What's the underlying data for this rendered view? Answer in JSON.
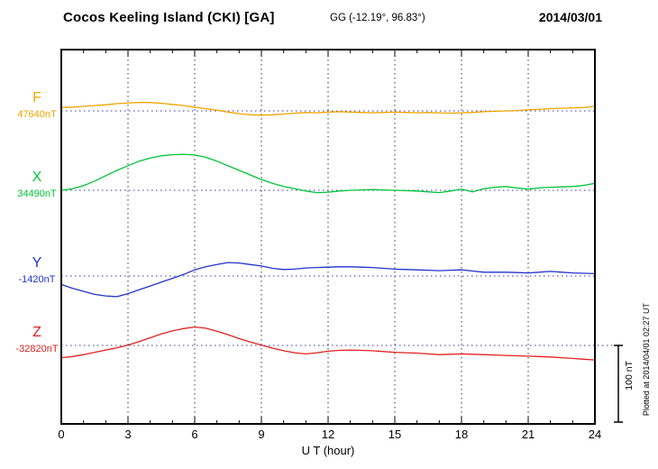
{
  "header": {
    "title": "Cocos Keeling Island (CKI)  [GA]",
    "coords": "GG (-12.19°,  96.83°)",
    "date": "2014/03/01"
  },
  "side_note": "Plotted at 2014/04/01 02:27 UT",
  "scale_bar": {
    "label": "100 nT"
  },
  "x_axis": {
    "label": "U T (hour)",
    "min": 0,
    "max": 24,
    "ticks": [
      0,
      3,
      6,
      9,
      12,
      15,
      18,
      21,
      24
    ]
  },
  "chart_data": {
    "type": "line",
    "title": "Cocos Keeling Island (CKI) magnetogram 2014/03/01",
    "units": "nT",
    "x_step": 0.5,
    "scale_bar_nT": 100,
    "series": [
      {
        "name": "F",
        "baseline_value": 47640,
        "baseline_label": "47640nT",
        "color": "#efa400",
        "values": [
          4.5,
          5,
          6,
          7,
          8,
          9.5,
          10.5,
          11,
          11,
          10,
          8.5,
          7,
          5,
          3,
          1,
          -1.5,
          -3.5,
          -5,
          -5.5,
          -5,
          -4,
          -3,
          -2,
          -2.5,
          -1.5,
          -1,
          -1.5,
          -2,
          -2.5,
          -2,
          -1.5,
          -2,
          -2.5,
          -2,
          -2.5,
          -3,
          -2.5,
          -2,
          -1,
          -0.5,
          0,
          0.5,
          1.5,
          2,
          3,
          3.5,
          4,
          4.5,
          6
        ]
      },
      {
        "name": "X",
        "baseline_value": 34490,
        "baseline_label": "34490nT",
        "color": "#00c437",
        "values": [
          0,
          2,
          6,
          12,
          19,
          26,
          32,
          38,
          42,
          45,
          46.5,
          47,
          46,
          43,
          38,
          32,
          26,
          20,
          14,
          9,
          5,
          2,
          -1,
          -3,
          -2.5,
          -1,
          0,
          0.5,
          1,
          0.5,
          0,
          -0.5,
          -1,
          -2,
          -3,
          -1,
          1.5,
          -2,
          2,
          4,
          5,
          3,
          1.5,
          3,
          4,
          4.5,
          5,
          6.5,
          9
        ]
      },
      {
        "name": "Y",
        "baseline_value": -1420,
        "baseline_label": "-1420nT",
        "color": "#2233cc",
        "values": [
          -11,
          -16,
          -20,
          -24,
          -26,
          -27,
          -23,
          -18,
          -13,
          -8,
          -3,
          2,
          8,
          12,
          15,
          17.5,
          17,
          15,
          13,
          10,
          8.5,
          9,
          10.5,
          11,
          11.5,
          12,
          12,
          11.5,
          11,
          10,
          9,
          8.5,
          8,
          7.5,
          7,
          7.5,
          8,
          6.5,
          5,
          5,
          5,
          4.5,
          4,
          5,
          6,
          5,
          4,
          3.5,
          3
        ]
      },
      {
        "name": "Z",
        "baseline_value": -32820,
        "baseline_label": "-32820nT",
        "color": "#e02020",
        "values": [
          -16,
          -14.5,
          -12,
          -9,
          -6,
          -3,
          0.5,
          5,
          10,
          15,
          19,
          22,
          24,
          22.5,
          18.5,
          14,
          9,
          4.5,
          0.5,
          -3.5,
          -7,
          -9.5,
          -11,
          -9.5,
          -7.5,
          -6.5,
          -6,
          -6.5,
          -7,
          -8,
          -9,
          -9.5,
          -10,
          -11,
          -12,
          -11.5,
          -11,
          -11.5,
          -12,
          -12.5,
          -13,
          -13.5,
          -14,
          -14.5,
          -15,
          -16,
          -17,
          -18,
          -19
        ]
      }
    ]
  }
}
